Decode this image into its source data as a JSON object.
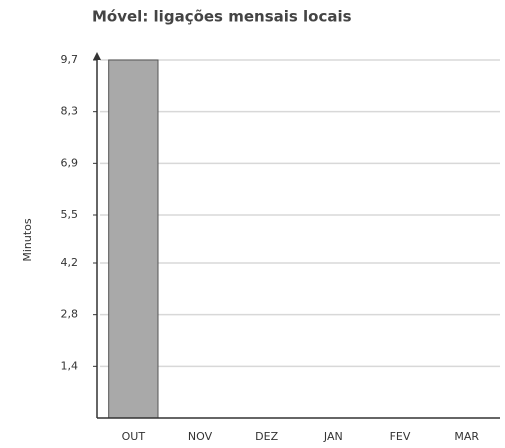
{
  "chart_data": {
    "type": "bar",
    "title": "Móvel: ligações mensais locais",
    "y_label": "Minutos",
    "categories": [
      "OUT",
      "NOV",
      "DEZ",
      "JAN",
      "FEV",
      "MAR"
    ],
    "values": [
      9.7,
      0,
      0,
      0,
      0,
      0
    ],
    "color": "#a9a9a9",
    "ylim": [
      0,
      9.7
    ],
    "yticks": [
      {
        "value": 1.4,
        "label": "1,4"
      },
      {
        "value": 2.8,
        "label": "2,8"
      },
      {
        "value": 4.2,
        "label": "4,2"
      },
      {
        "value": 5.5,
        "label": "5,5"
      },
      {
        "value": 6.9,
        "label": "6,9"
      },
      {
        "value": 8.3,
        "label": "8,3"
      },
      {
        "value": 9.7,
        "label": "9,7"
      }
    ],
    "grid": true
  }
}
